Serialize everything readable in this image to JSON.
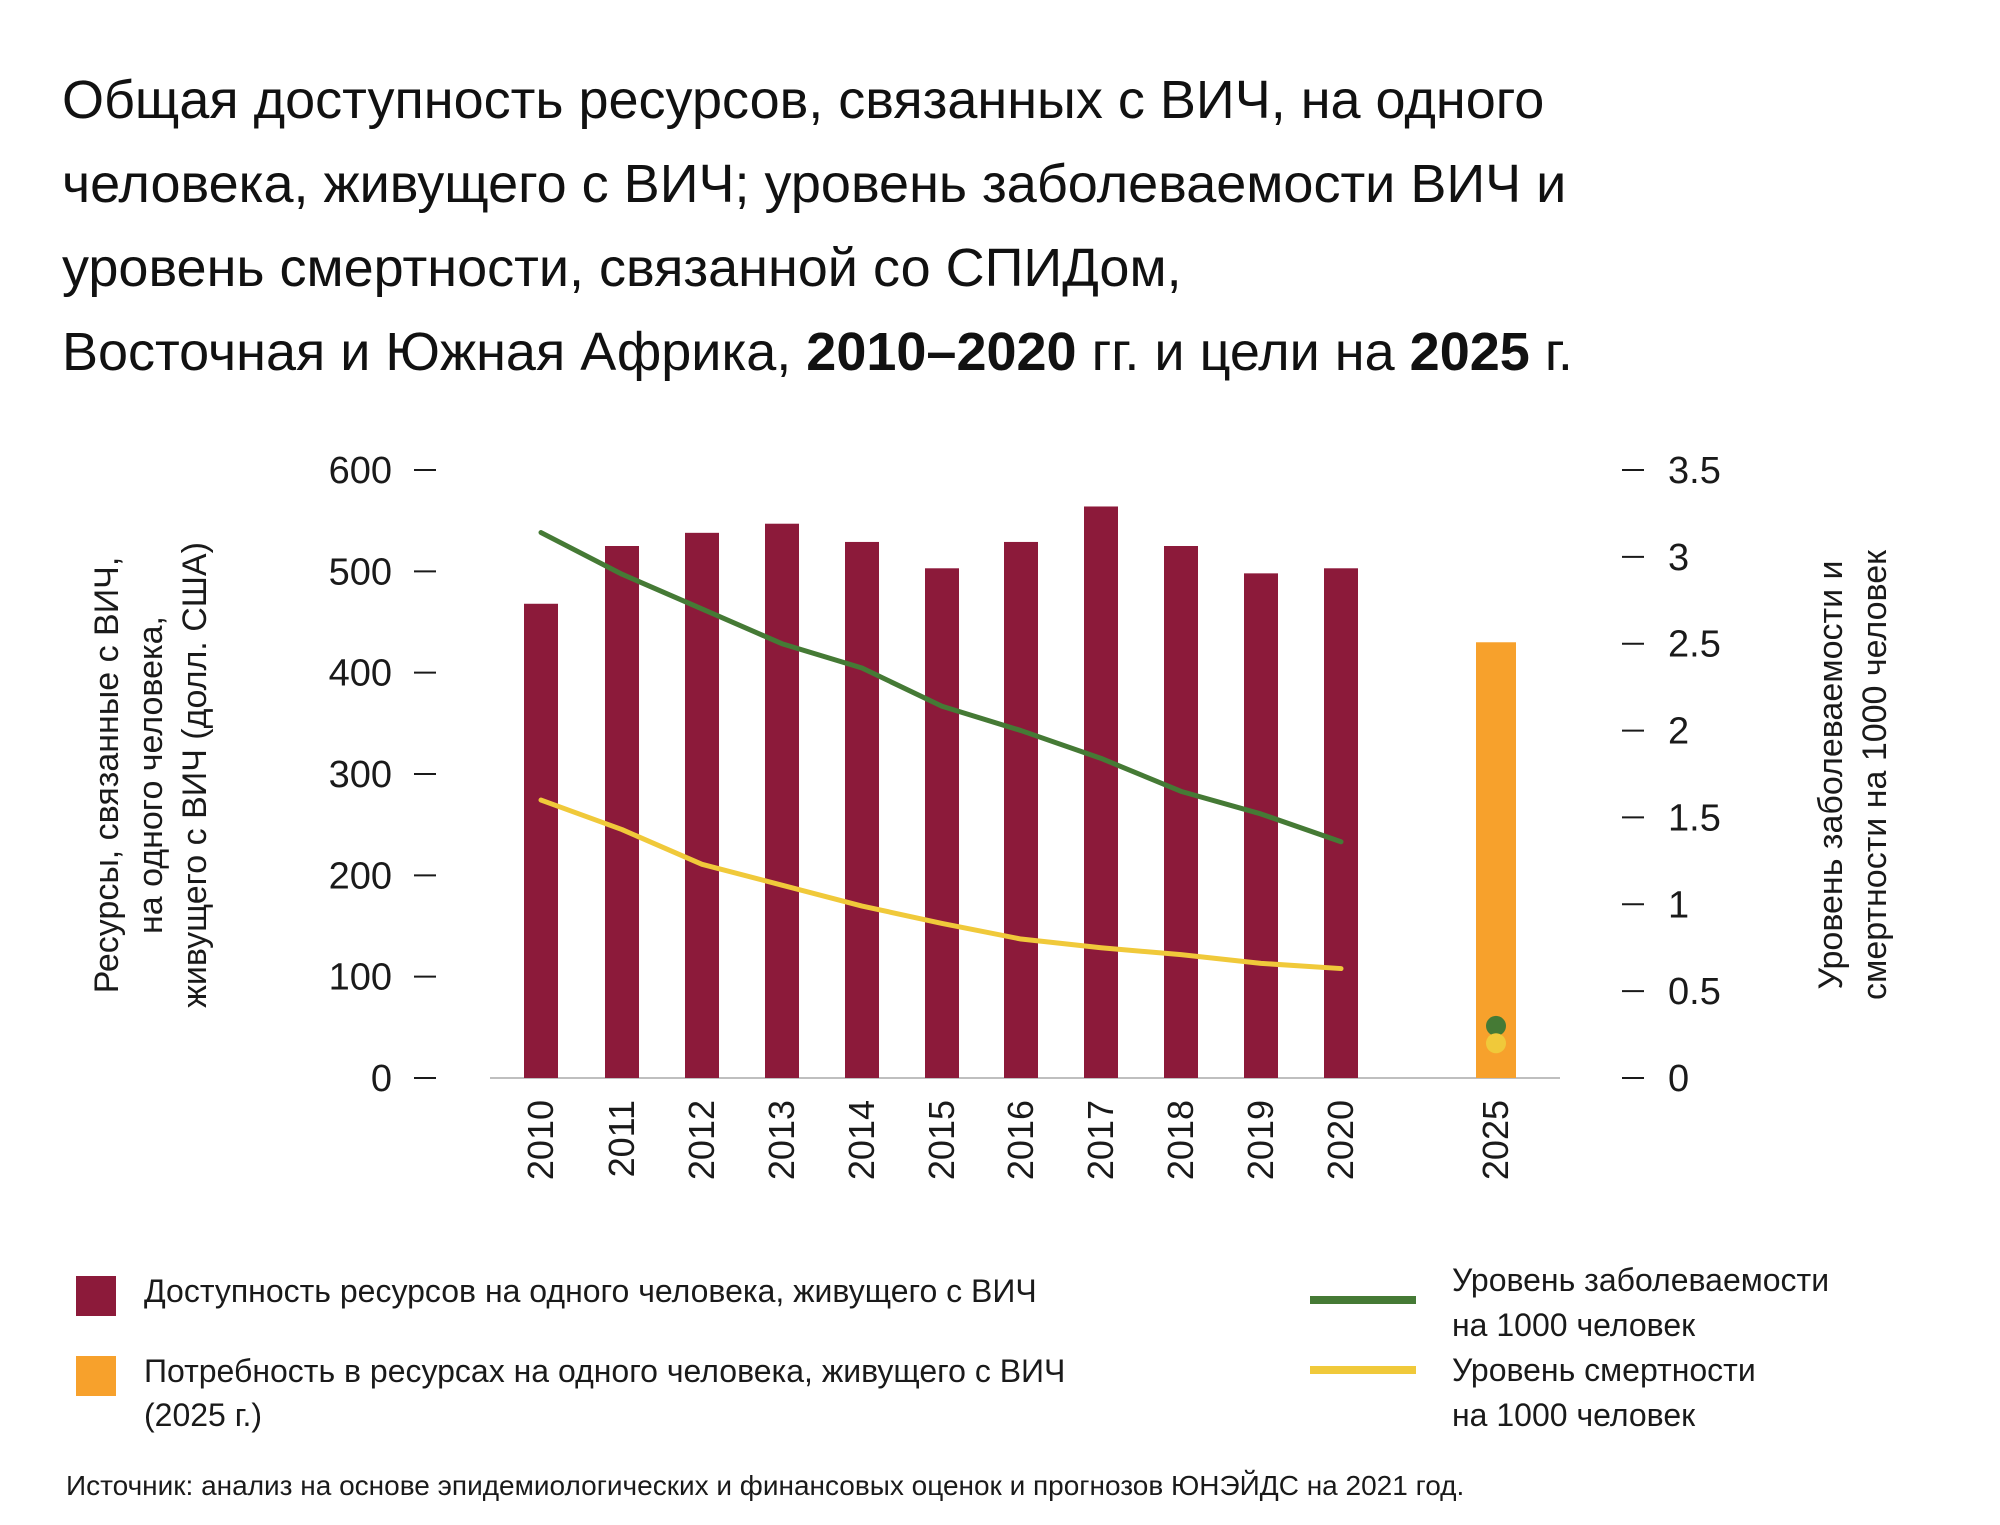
{
  "title": {
    "line1": "Общая доступность ресурсов, связанных с ВИЧ, на одного",
    "line2": "человека, живущего с ВИЧ; уровень заболеваемости ВИЧ и",
    "line3": "уровень смертности, связанной со СПИДом,",
    "line4_a": "Восточная и Южная Африка, ",
    "line4_b": "2010–2020",
    "line4_c": " гг. и цели на ",
    "line4_d": "2025",
    "line4_e": " г."
  },
  "chart_data": {
    "type": "bar",
    "categories": [
      "2010",
      "2011",
      "2012",
      "2013",
      "2014",
      "2015",
      "2016",
      "2017",
      "2018",
      "2019",
      "2020",
      "2025"
    ],
    "ylabel_left": [
      "Ресурсы, связанные с ВИЧ,",
      "на одного человека,",
      "живущего с ВИЧ (долл. США)"
    ],
    "ylabel_right": [
      "Уровень заболеваемости и",
      "смертности на 1000 человек"
    ],
    "ylim_left": [
      0,
      600
    ],
    "ylim_right": [
      0,
      3.5
    ],
    "yticks_left": [
      "0",
      "100",
      "200",
      "300",
      "400",
      "500",
      "600"
    ],
    "yticks_right": [
      "0",
      "0.5",
      "1",
      "1.5",
      "2",
      "2.5",
      "3",
      "3.5"
    ],
    "bars_available": {
      "name": "Доступность ресурсов на одного человека, живущего с ВИЧ",
      "color": "#8c1a3a",
      "x": [
        "2010",
        "2011",
        "2012",
        "2013",
        "2014",
        "2015",
        "2016",
        "2017",
        "2018",
        "2019",
        "2020"
      ],
      "values": [
        468,
        525,
        538,
        547,
        529,
        503,
        529,
        564,
        525,
        498,
        503
      ]
    },
    "bars_needed": {
      "name": "Потребность в ресурсах на одного человека, живущего с ВИЧ",
      "name_line2": "(2025 г.)",
      "color": "#f7a12c",
      "x": [
        "2025"
      ],
      "values": [
        430
      ]
    },
    "line_incidence": {
      "name": "Уровень заболеваемости",
      "name_line2": "на 1000 человек",
      "color": "#457a35",
      "x": [
        "2010",
        "2011",
        "2012",
        "2013",
        "2014",
        "2015",
        "2016",
        "2017",
        "2018",
        "2019",
        "2020"
      ],
      "values": [
        3.14,
        2.9,
        2.7,
        2.5,
        2.36,
        2.14,
        2.0,
        1.84,
        1.65,
        1.52,
        1.36
      ],
      "target_2025": 0.3
    },
    "line_mortality": {
      "name": "Уровень смертности",
      "name_line2": "на 1000 человек",
      "color": "#f0c93a",
      "x": [
        "2010",
        "2011",
        "2012",
        "2013",
        "2014",
        "2015",
        "2016",
        "2017",
        "2018",
        "2019",
        "2020"
      ],
      "values": [
        1.6,
        1.43,
        1.23,
        1.11,
        0.99,
        0.89,
        0.8,
        0.75,
        0.71,
        0.66,
        0.63
      ],
      "target_2025": 0.2
    }
  },
  "legend": {
    "available_label": "Доступность ресурсов на одного человека, живущего с ВИЧ",
    "needed_label_1": "Потребность в ресурсах на одного человека, живущего с ВИЧ",
    "needed_label_2": "(2025 г.)",
    "incidence_label_1": "Уровень заболеваемости",
    "incidence_label_2": "на 1000 человек",
    "mortality_label_1": "Уровень смертности",
    "mortality_label_2": "на 1000 человек"
  },
  "source": "Источник: анализ на основе эпидемиологических и финансовых оценок и прогнозов ЮНЭЙДС на 2021 год."
}
